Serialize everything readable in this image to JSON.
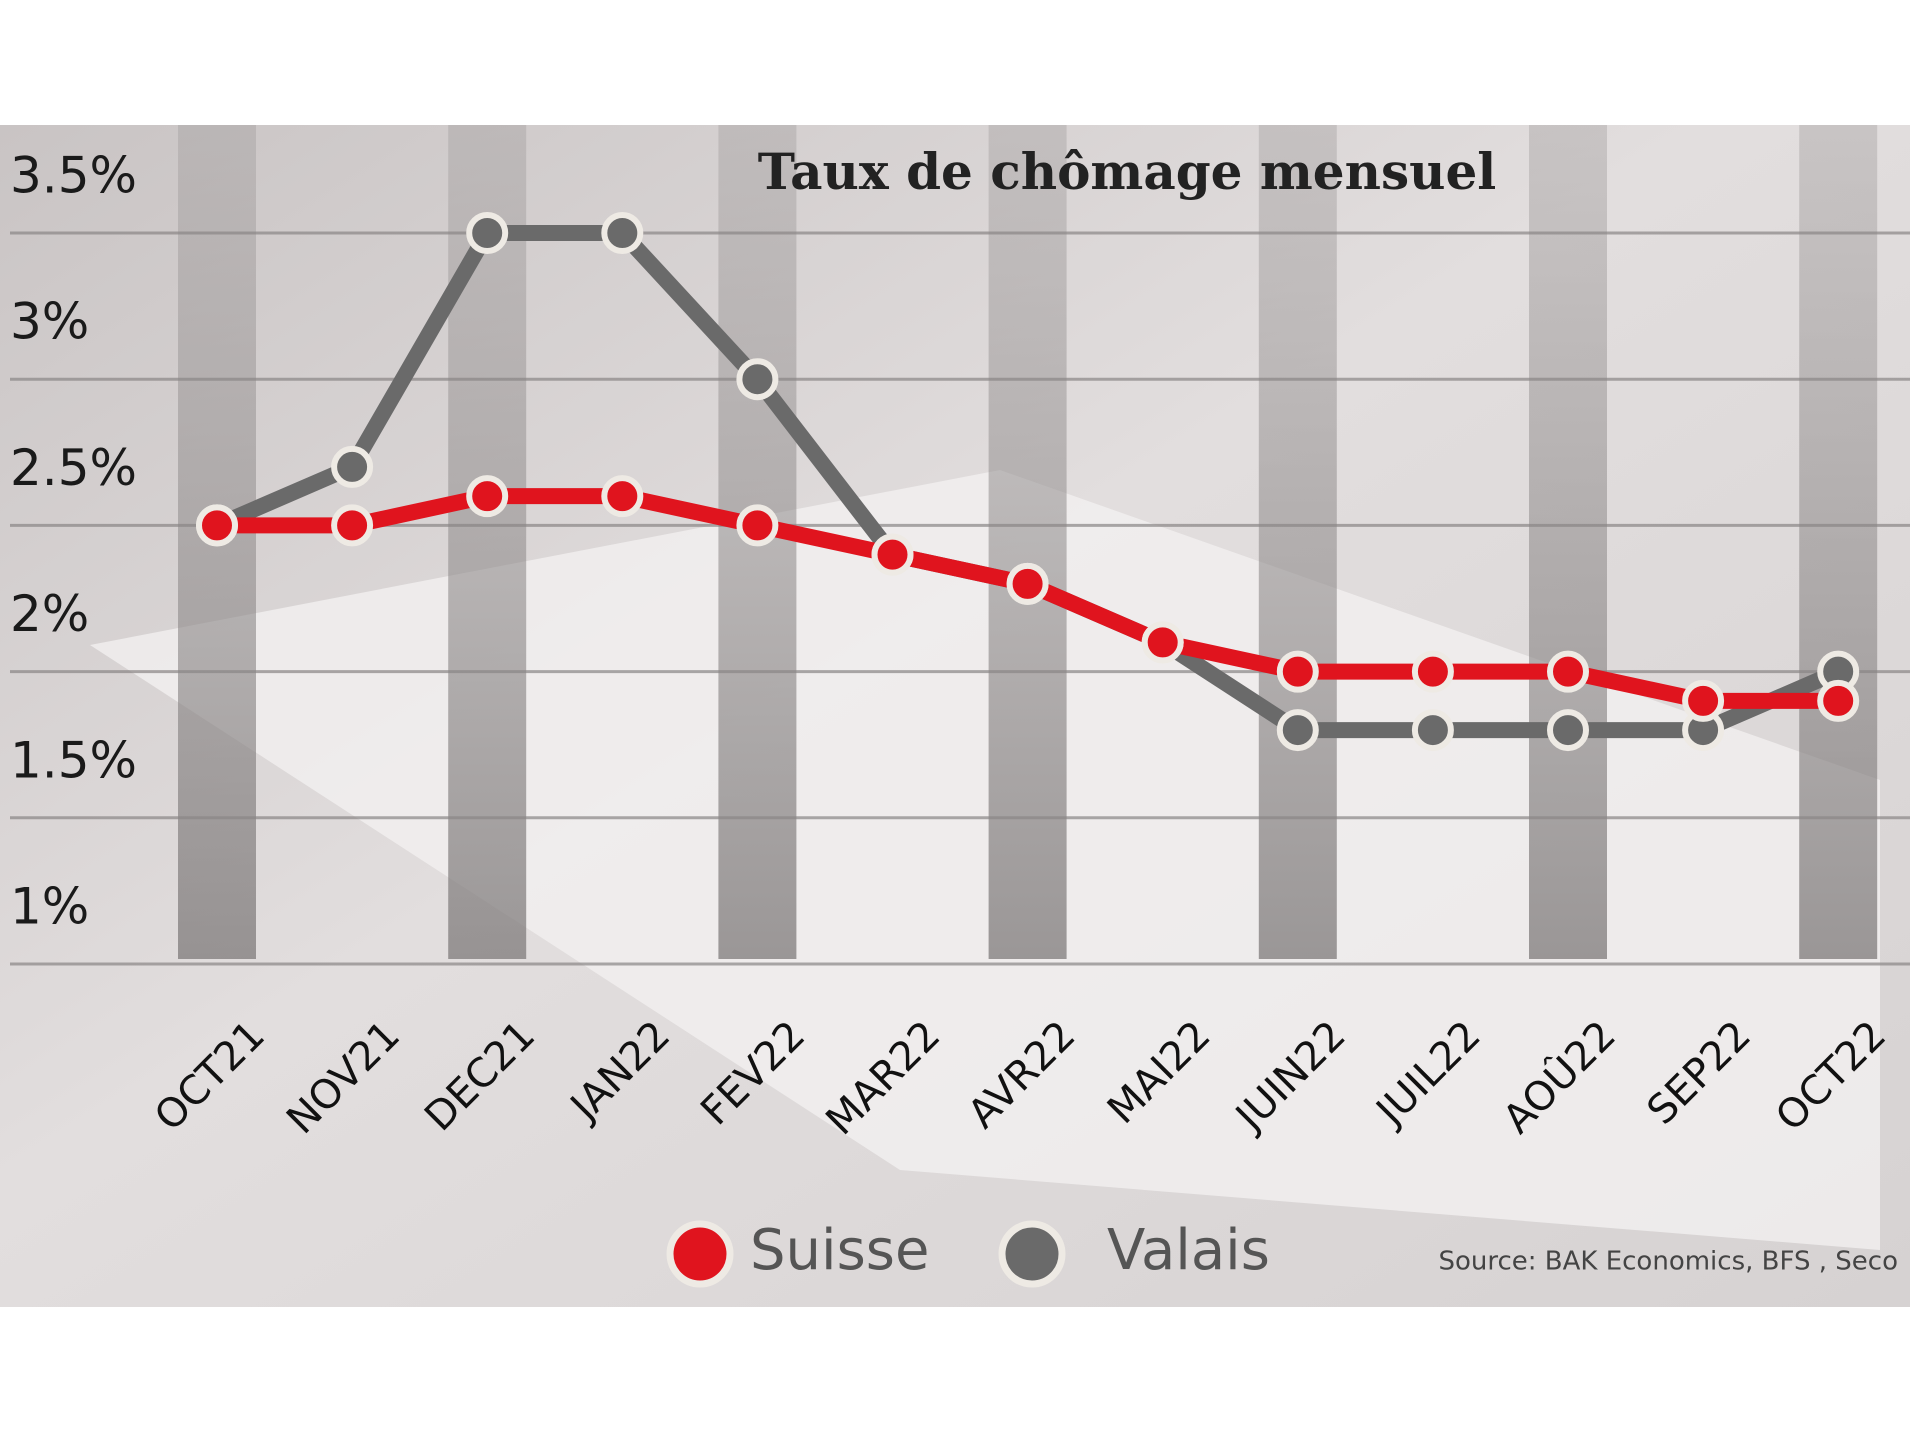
{
  "chart_data": {
    "type": "line",
    "title": "Taux de chômage mensuel",
    "categories": [
      "OCT21",
      "NOV21",
      "DEC21",
      "JAN22",
      "FEV22",
      "MAR22",
      "AVR22",
      "MAI22",
      "JUIN22",
      "JUIL22",
      "AOÛ22",
      "SEP22",
      "OCT22"
    ],
    "series": [
      {
        "name": "Suisse",
        "color": "#e0141e",
        "values": [
          2.5,
          2.5,
          2.6,
          2.6,
          2.5,
          2.4,
          2.3,
          2.1,
          2.0,
          2.0,
          2.0,
          1.9,
          1.9
        ]
      },
      {
        "name": "Valais",
        "color": "#6a6a6a",
        "values": [
          2.5,
          2.7,
          3.5,
          3.5,
          3.0,
          2.4,
          2.3,
          2.1,
          1.8,
          1.8,
          1.8,
          1.8,
          2.0
        ]
      }
    ],
    "ylim": [
      1,
      3.5
    ],
    "yticks": [
      {
        "value": 1,
        "label": "1%"
      },
      {
        "value": 1.5,
        "label": "1.5%"
      },
      {
        "value": 2,
        "label": "2%"
      },
      {
        "value": 2.5,
        "label": "2.5%"
      },
      {
        "value": 3,
        "label": "3%"
      },
      {
        "value": 3.5,
        "label": "3.5%"
      }
    ],
    "grid": true,
    "source": "Source: BAK Economics, BFS , Seco"
  }
}
